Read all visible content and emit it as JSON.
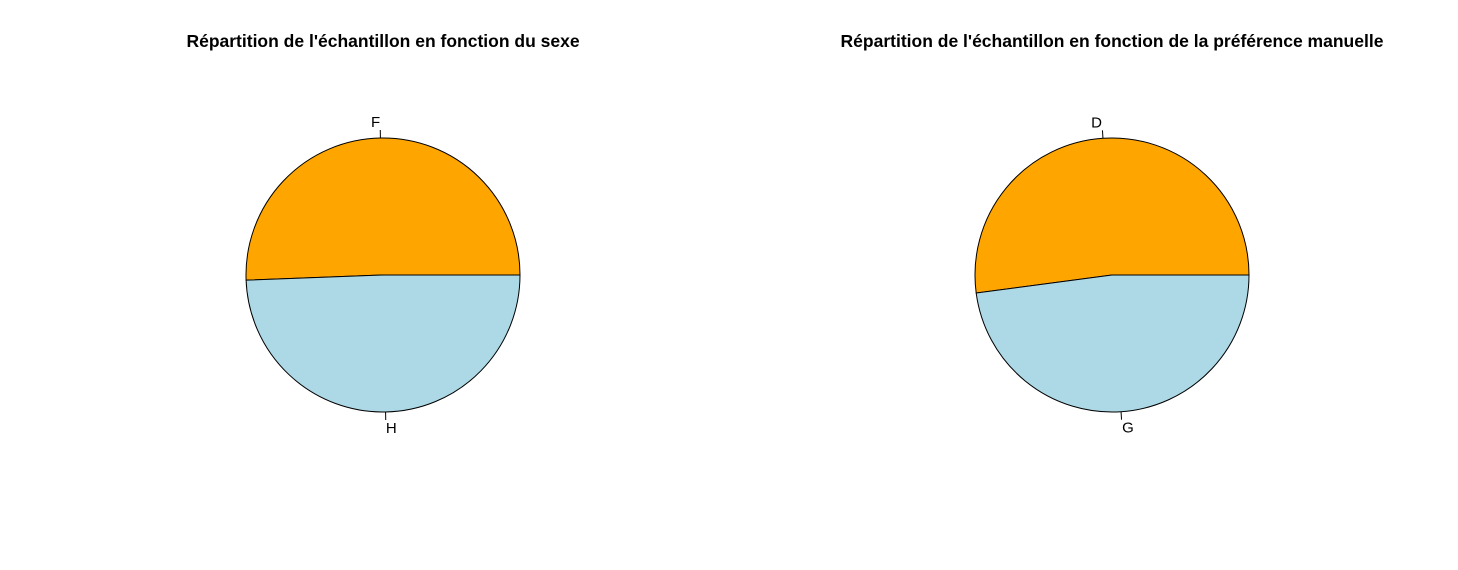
{
  "chart_data": [
    {
      "type": "pie",
      "title": "Répartition de l'échantillon en fonction du sexe",
      "categories": [
        "F",
        "H"
      ],
      "values": [
        50.6,
        49.4
      ],
      "colors": [
        "#FFA500",
        "#ADD8E6"
      ],
      "direction": "counterclockwise",
      "start": "right"
    },
    {
      "type": "pie",
      "title": "Répartition de l'échantillon en fonction de la préférence manuelle",
      "categories": [
        "D",
        "G"
      ],
      "values": [
        52.1,
        47.9
      ],
      "colors": [
        "#FFA500",
        "#ADD8E6"
      ],
      "direction": "counterclockwise",
      "start": "right"
    }
  ]
}
